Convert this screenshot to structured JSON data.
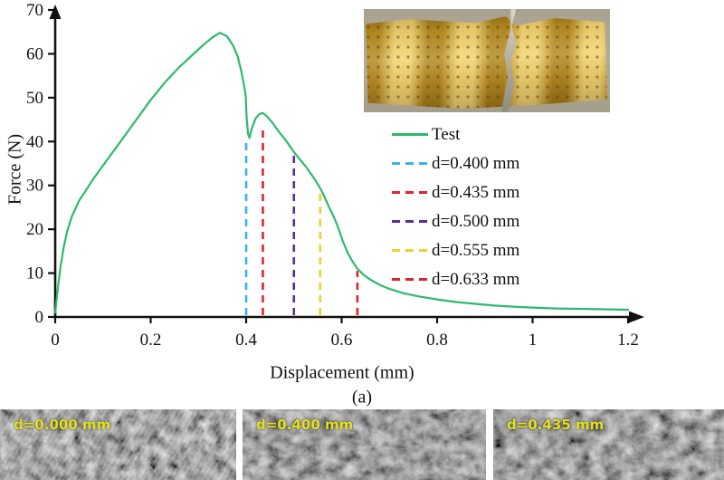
{
  "figure": {
    "panel_label": "(a)"
  },
  "chart_data": {
    "type": "line",
    "title": "",
    "xlabel": "Displacement (mm)",
    "ylabel": "Force (N)",
    "xlim": [
      0,
      1.2
    ],
    "ylim": [
      0,
      70
    ],
    "xticks": [
      0,
      0.2,
      0.4,
      0.6,
      0.8,
      1,
      1.2
    ],
    "yticks": [
      0,
      10,
      20,
      30,
      40,
      50,
      60,
      70
    ],
    "grid": false,
    "legend_position": "inside-right",
    "axis_color": "#111111",
    "series": [
      {
        "name": "Test",
        "color": "#2db96d",
        "style": "solid",
        "points": [
          [
            0,
            1
          ],
          [
            0.003,
            4
          ],
          [
            0.007,
            8
          ],
          [
            0.012,
            12
          ],
          [
            0.018,
            16
          ],
          [
            0.025,
            19.5
          ],
          [
            0.035,
            23
          ],
          [
            0.05,
            26.5
          ],
          [
            0.065,
            29
          ],
          [
            0.08,
            31.5
          ],
          [
            0.1,
            34.5
          ],
          [
            0.12,
            37.5
          ],
          [
            0.14,
            40.5
          ],
          [
            0.17,
            45
          ],
          [
            0.2,
            49.5
          ],
          [
            0.23,
            53.5
          ],
          [
            0.26,
            57
          ],
          [
            0.285,
            59.5
          ],
          [
            0.31,
            62
          ],
          [
            0.33,
            63.8
          ],
          [
            0.345,
            64.8
          ],
          [
            0.36,
            64
          ],
          [
            0.372,
            62
          ],
          [
            0.382,
            59.5
          ],
          [
            0.39,
            56
          ],
          [
            0.396,
            52.5
          ],
          [
            0.399,
            50.5
          ],
          [
            0.401,
            45.5
          ],
          [
            0.404,
            41.8
          ],
          [
            0.407,
            40.8
          ],
          [
            0.412,
            43
          ],
          [
            0.42,
            45.3
          ],
          [
            0.428,
            46.3
          ],
          [
            0.435,
            46.5
          ],
          [
            0.443,
            45.8
          ],
          [
            0.455,
            44.3
          ],
          [
            0.468,
            42.3
          ],
          [
            0.48,
            40.7
          ],
          [
            0.49,
            39.2
          ],
          [
            0.5,
            37.6
          ],
          [
            0.512,
            36
          ],
          [
            0.525,
            34.3
          ],
          [
            0.538,
            32.3
          ],
          [
            0.55,
            30.3
          ],
          [
            0.558,
            28.8
          ],
          [
            0.565,
            27.2
          ],
          [
            0.573,
            25.2
          ],
          [
            0.582,
            23.2
          ],
          [
            0.592,
            20.6
          ],
          [
            0.602,
            17.4
          ],
          [
            0.612,
            14.8
          ],
          [
            0.622,
            12.8
          ],
          [
            0.633,
            11
          ],
          [
            0.646,
            9.6
          ],
          [
            0.66,
            8.5
          ],
          [
            0.68,
            7.3
          ],
          [
            0.7,
            6.4
          ],
          [
            0.73,
            5.4
          ],
          [
            0.76,
            4.7
          ],
          [
            0.8,
            4
          ],
          [
            0.84,
            3.4
          ],
          [
            0.88,
            3
          ],
          [
            0.92,
            2.6
          ],
          [
            0.96,
            2.35
          ],
          [
            1,
            2.15
          ],
          [
            1.05,
            1.95
          ],
          [
            1.1,
            1.85
          ],
          [
            1.15,
            1.75
          ],
          [
            1.2,
            1.65
          ]
        ]
      }
    ],
    "vlines": [
      {
        "name": "d=0.400 mm",
        "x": 0.4,
        "top": 40,
        "color": "#36b3e6"
      },
      {
        "name": "d=0.435 mm",
        "x": 0.435,
        "top": 43.5,
        "color": "#e1242b"
      },
      {
        "name": "d=0.500 mm",
        "x": 0.5,
        "top": 37,
        "color": "#5f2c90"
      },
      {
        "name": "d=0.555 mm",
        "x": 0.555,
        "top": 28.5,
        "color": "#f0d02c"
      },
      {
        "name": "d=0.633 mm",
        "x": 0.633,
        "top": 10.5,
        "color": "#e1242b"
      }
    ]
  },
  "micrographs": [
    {
      "label": "d=0.000 mm"
    },
    {
      "label": "d=0.400 mm"
    },
    {
      "label": "d=0.435 mm"
    }
  ],
  "colors": {
    "curve_green": "#2db96d",
    "micrograph_label_yellow": "#e5e01e",
    "axis_black": "#111111"
  }
}
